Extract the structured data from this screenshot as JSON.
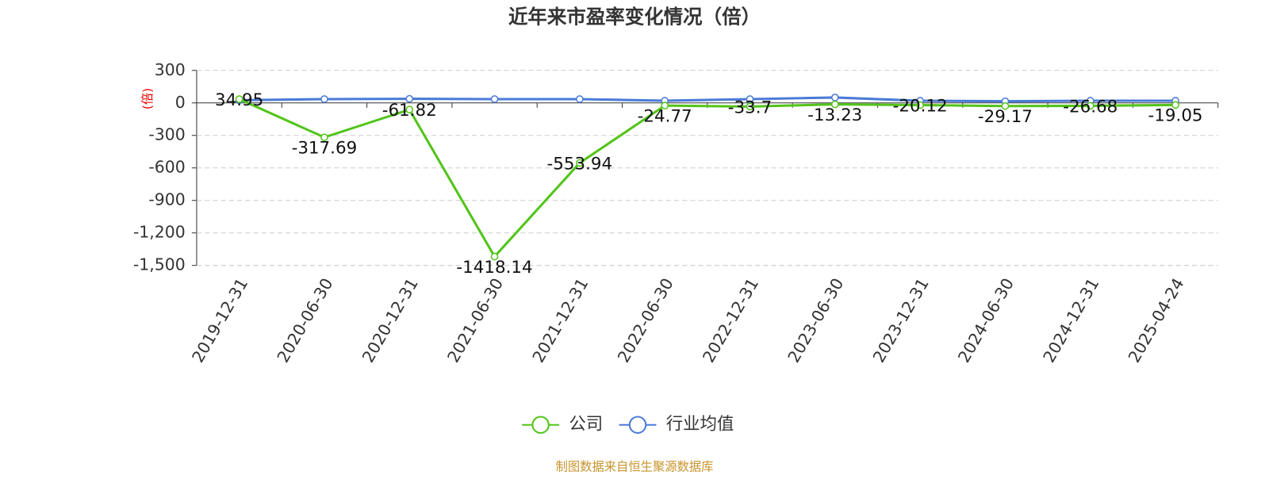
{
  "chart_data": {
    "type": "line",
    "title": "近年来市盈率变化情况（倍）",
    "y_label": "(倍)",
    "source": "制图数据来自恒生聚源数据库",
    "categories": [
      "2019-12-31",
      "2020-06-30",
      "2020-12-31",
      "2021-06-30",
      "2021-12-31",
      "2022-06-30",
      "2022-12-31",
      "2023-06-30",
      "2023-12-31",
      "2024-06-30",
      "2024-12-31",
      "2025-04-24"
    ],
    "series": [
      {
        "name": "公司",
        "color": "#52c41a",
        "labels": true,
        "values": [
          34.95,
          -317.69,
          -61.82,
          -1418.14,
          -553.94,
          -24.77,
          -33.7,
          -13.23,
          -20.12,
          -29.17,
          -26.68,
          -19.05
        ]
      },
      {
        "name": "行业均值",
        "color": "#4b7bd8",
        "labels": false,
        "values": [
          25,
          35,
          38,
          35,
          35,
          20,
          35,
          50,
          20,
          15,
          20,
          20
        ]
      }
    ],
    "ylim": [
      -1500,
      300
    ],
    "yticks": [
      300,
      0,
      -300,
      -600,
      -900,
      {
        "value": -1200,
        "label": "-1,200"
      },
      {
        "value": -1500,
        "label": "-1,500"
      }
    ],
    "grid": true
  }
}
